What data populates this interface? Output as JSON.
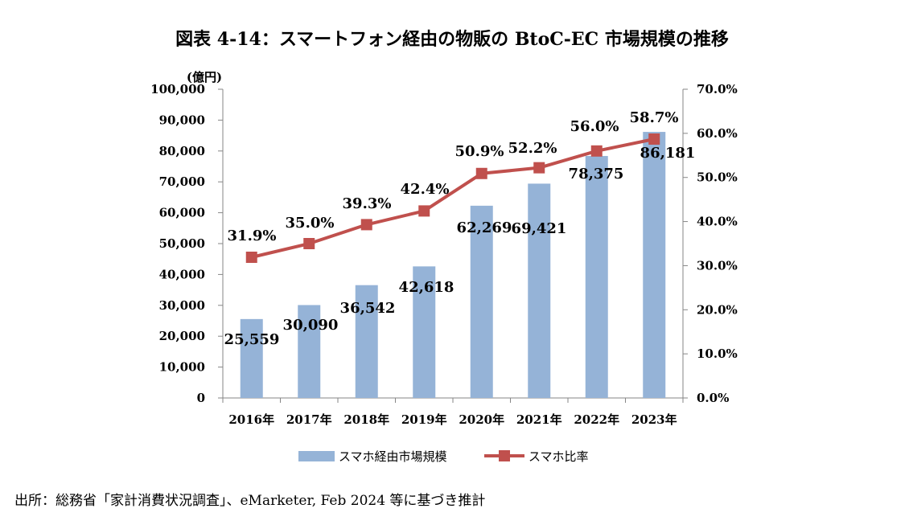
{
  "chart_data": {
    "type": "bar+line",
    "title": "図表 4-14：スマートフォン経由の物販の BtoC-EC 市場規模の推移",
    "ylabel": "(億円)",
    "categories": [
      "2016年",
      "2017年",
      "2018年",
      "2019年",
      "2020年",
      "2021年",
      "2022年",
      "2023年"
    ],
    "series": [
      {
        "name": "スマホ経由市場規模",
        "type": "bar",
        "axis": "left",
        "color": "#95b3d7",
        "values": [
          25559,
          30090,
          36542,
          42618,
          62269,
          69421,
          78375,
          86181
        ],
        "labels": [
          "25,559",
          "30,090",
          "36,542",
          "42,618",
          "62,269",
          "69,421",
          "78,375",
          "86,181"
        ]
      },
      {
        "name": "スマホ比率",
        "type": "line",
        "axis": "right",
        "color": "#c0504d",
        "values": [
          31.9,
          35.0,
          39.3,
          42.4,
          50.9,
          52.2,
          56.0,
          58.7
        ],
        "labels": [
          "31.9%",
          "35.0%",
          "39.3%",
          "42.4%",
          "50.9%",
          "52.2%",
          "56.0%",
          "58.7%"
        ]
      }
    ],
    "left_axis": {
      "ylim": [
        0,
        100000
      ],
      "ticks": [
        "0",
        "10,000",
        "20,000",
        "30,000",
        "40,000",
        "50,000",
        "60,000",
        "70,000",
        "80,000",
        "90,000",
        "100,000"
      ]
    },
    "right_axis": {
      "ylim": [
        0,
        70
      ],
      "ticks": [
        "0.0%",
        "10.0%",
        "20.0%",
        "30.0%",
        "40.0%",
        "50.0%",
        "60.0%",
        "70.0%"
      ]
    },
    "grid": false,
    "legend": "bottom-center"
  },
  "source": "出所：総務省「家計消費状況調査」、eMarketer, Feb 2024 等に基づき推計"
}
